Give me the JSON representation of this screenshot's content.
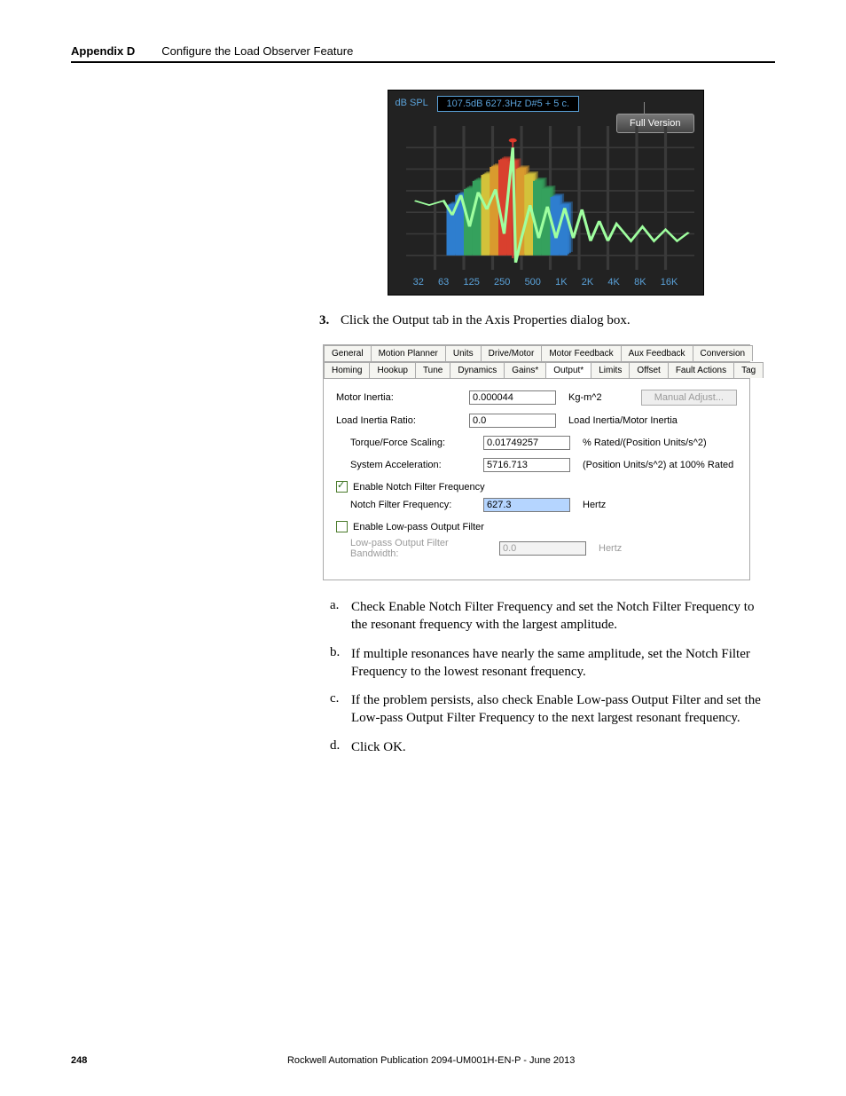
{
  "header": {
    "appendix": "Appendix D",
    "title": "Configure the Load Observer Feature"
  },
  "fft": {
    "db_spl": "dB SPL",
    "readout": "107.5dB 627.3Hz     D#5 + 5 c.",
    "badge": "Full Version",
    "xticks": [
      "32",
      "63",
      "125",
      "250",
      "500",
      "1K",
      "2K",
      "4K",
      "8K",
      "16K"
    ],
    "grid_hlines": [
      0.15,
      0.3,
      0.45,
      0.6,
      0.75,
      0.9
    ],
    "bars": [
      {
        "x": 0.14,
        "w": 0.03,
        "h": 0.5,
        "c": "#2e7ecf"
      },
      {
        "x": 0.17,
        "w": 0.03,
        "h": 0.6,
        "c": "#2e7ecf"
      },
      {
        "x": 0.2,
        "w": 0.03,
        "h": 0.66,
        "c": "#35a15d"
      },
      {
        "x": 0.23,
        "w": 0.03,
        "h": 0.74,
        "c": "#35a15d"
      },
      {
        "x": 0.26,
        "w": 0.03,
        "h": 0.8,
        "c": "#d3c23a"
      },
      {
        "x": 0.29,
        "w": 0.03,
        "h": 0.88,
        "c": "#d99a2e"
      },
      {
        "x": 0.32,
        "w": 0.03,
        "h": 0.95,
        "c": "#d9402e"
      },
      {
        "x": 0.35,
        "w": 0.03,
        "h": 0.93,
        "c": "#d9402e"
      },
      {
        "x": 0.38,
        "w": 0.03,
        "h": 0.86,
        "c": "#d99a2e"
      },
      {
        "x": 0.41,
        "w": 0.03,
        "h": 0.8,
        "c": "#d3c23a"
      },
      {
        "x": 0.44,
        "w": 0.03,
        "h": 0.74,
        "c": "#35a15d"
      },
      {
        "x": 0.47,
        "w": 0.03,
        "h": 0.66,
        "c": "#35a15d"
      },
      {
        "x": 0.5,
        "w": 0.03,
        "h": 0.58,
        "c": "#2e7ecf"
      },
      {
        "x": 0.53,
        "w": 0.03,
        "h": 0.5,
        "c": "#2e7ecf"
      }
    ],
    "trace_pts": [
      [
        0.03,
        0.52
      ],
      [
        0.08,
        0.55
      ],
      [
        0.13,
        0.52
      ],
      [
        0.16,
        0.62
      ],
      [
        0.19,
        0.48
      ],
      [
        0.22,
        0.7
      ],
      [
        0.25,
        0.46
      ],
      [
        0.28,
        0.58
      ],
      [
        0.31,
        0.44
      ],
      [
        0.34,
        0.75
      ],
      [
        0.37,
        0.15
      ],
      [
        0.38,
        0.95
      ],
      [
        0.4,
        0.78
      ],
      [
        0.43,
        0.55
      ],
      [
        0.46,
        0.78
      ],
      [
        0.49,
        0.56
      ],
      [
        0.52,
        0.78
      ],
      [
        0.55,
        0.57
      ],
      [
        0.58,
        0.78
      ],
      [
        0.61,
        0.58
      ],
      [
        0.64,
        0.8
      ],
      [
        0.67,
        0.66
      ],
      [
        0.7,
        0.8
      ],
      [
        0.73,
        0.68
      ],
      [
        0.78,
        0.8
      ],
      [
        0.82,
        0.7
      ],
      [
        0.86,
        0.8
      ],
      [
        0.9,
        0.72
      ],
      [
        0.94,
        0.8
      ],
      [
        0.98,
        0.74
      ]
    ],
    "peak_marker_x": 0.37
  },
  "step3": {
    "num": "3.",
    "text": "Click the Output tab in the Axis Properties dialog box."
  },
  "dialog": {
    "tabs_row1": [
      "General",
      "Motion Planner",
      "Units",
      "Drive/Motor",
      "Motor Feedback",
      "Aux Feedback",
      "Conversion"
    ],
    "tabs_row2": [
      "Homing",
      "Hookup",
      "Tune",
      "Dynamics",
      "Gains*",
      "Output*",
      "Limits",
      "Offset",
      "Fault Actions",
      "Tag"
    ],
    "active_tab": "Output*",
    "rows": [
      {
        "label": "Motor Inertia:",
        "value": "0.000044",
        "unit": "Kg-m^2",
        "button": "Manual Adjust..."
      },
      {
        "label": "Load Inertia Ratio:",
        "value": "0.0",
        "unit": "Load Inertia/Motor Inertia"
      },
      {
        "label": "Torque/Force Scaling:",
        "value": "0.01749257",
        "unit": "% Rated/(Position Units/s^2)",
        "indent": true
      },
      {
        "label": "System Acceleration:",
        "value": "5716.713",
        "unit": "(Position Units/s^2) at 100% Rated",
        "indent": true
      }
    ],
    "check_notch": {
      "checked": true,
      "label": "Enable Notch Filter Frequency"
    },
    "notch_row": {
      "label": "Notch Filter Frequency:",
      "value": "627.3",
      "unit": "Hertz"
    },
    "check_lowpass": {
      "checked": false,
      "label": "Enable Low-pass Output Filter"
    },
    "lowpass_row": {
      "label": "Low-pass Output Filter Bandwidth:",
      "value": "0.0",
      "unit": "Hertz"
    }
  },
  "substeps": [
    {
      "lt": "a.",
      "txt": "Check Enable Notch Filter Frequency and set the Notch Filter Frequency to the resonant frequency with the largest amplitude."
    },
    {
      "lt": "b.",
      "txt": "If multiple resonances have nearly the same amplitude, set the Notch Filter Frequency to the lowest resonant frequency."
    },
    {
      "lt": "c.",
      "txt": "If the problem persists, also check Enable Low-pass Output Filter and set the Low-pass Output Filter Frequency to the next largest resonant frequency."
    },
    {
      "lt": "d.",
      "txt": "Click OK."
    }
  ],
  "footer": {
    "page": "248",
    "pub": "Rockwell Automation Publication 2094-UM001H-EN-P - June 2013"
  }
}
